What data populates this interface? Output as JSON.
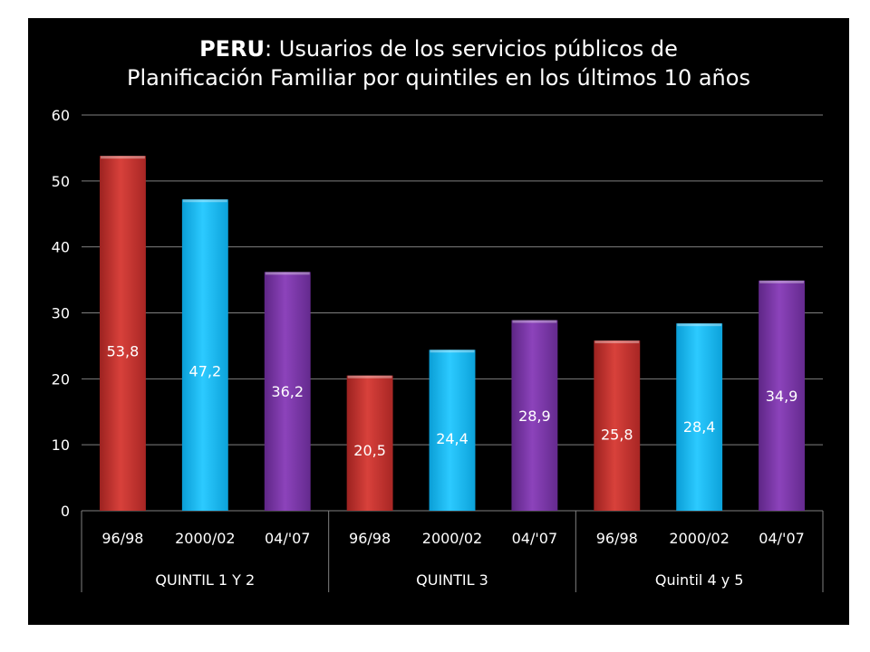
{
  "title": {
    "bold": "PERU",
    "rest": ":  Usuarios de los servicios públicos de",
    "line2": "Planificación Familiar por quintiles en los últimos 10 años"
  },
  "colors": {
    "96/98": "#c9302c",
    "2000/02": "#12b5ef",
    "04/'07": "#7a35a6"
  },
  "chart_data": {
    "type": "bar",
    "title": "PERU:  Usuarios de los servicios públicos de Planificación Familiar por quintiles en los últimos 10 años",
    "groups": [
      "QUINTIL 1 Y 2",
      "QUINTIL 3",
      "Quintil 4 y 5"
    ],
    "periods": [
      "96/98",
      "2000/02",
      "04/'07"
    ],
    "values": [
      [
        "53,8",
        "47,2",
        "36,2"
      ],
      [
        "20,5",
        "24,4",
        "28,9"
      ],
      [
        "25,8",
        "28,4",
        "34,9"
      ]
    ],
    "numeric_values": [
      [
        53.8,
        47.2,
        36.2
      ],
      [
        20.5,
        24.4,
        28.9
      ],
      [
        25.8,
        28.4,
        34.9
      ]
    ],
    "ylim": [
      0,
      60
    ],
    "yticks": [
      "0",
      "10",
      "20",
      "30",
      "40",
      "50",
      "60"
    ],
    "grid": true,
    "legend": "none"
  }
}
